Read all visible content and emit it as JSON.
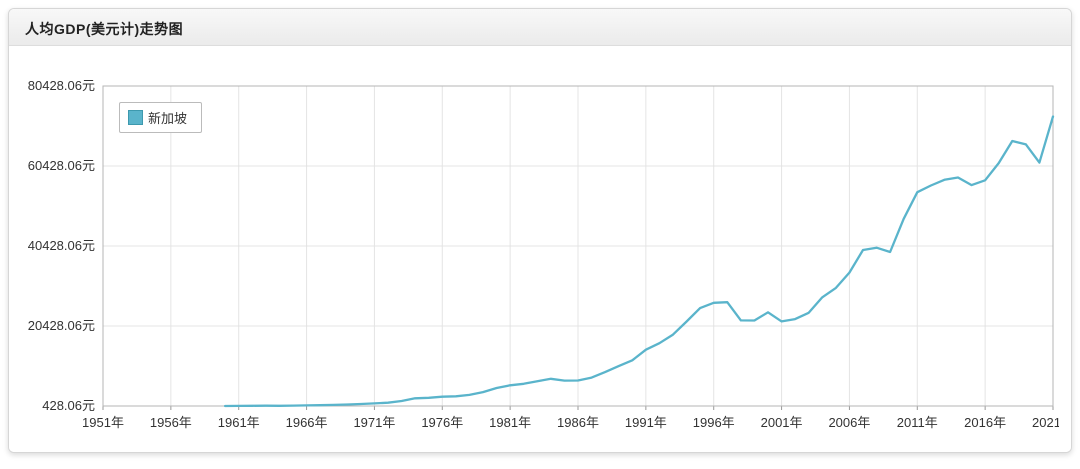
{
  "header": {
    "title": "人均GDP(美元计)走势图"
  },
  "legend": {
    "items": [
      {
        "label": "新加坡",
        "color": "#5ab4cb"
      }
    ]
  },
  "chart_data": {
    "type": "line",
    "title": "人均GDP(美元计)走势图",
    "grid": true,
    "legend_position": "top-left",
    "x_range": [
      1951,
      2021
    ],
    "y_range": [
      428.06,
      80428.06
    ],
    "x_tick_values": [
      1951,
      1956,
      1961,
      1966,
      1971,
      1976,
      1981,
      1986,
      1991,
      1996,
      2001,
      2006,
      2011,
      2016,
      2021
    ],
    "x_tick_labels": [
      "1951年",
      "1956年",
      "1961年",
      "1966年",
      "1971年",
      "1976年",
      "1981年",
      "1986年",
      "1991年",
      "1996年",
      "2001年",
      "2006年",
      "2011年",
      "2016年",
      "2021年"
    ],
    "y_tick_values": [
      428.06,
      20428.06,
      40428.06,
      60428.06,
      80428.06
    ],
    "y_tick_labels": [
      "428.06元",
      "20428.06元",
      "40428.06元",
      "60428.06元",
      "80428.06元"
    ],
    "series": [
      {
        "name": "新加坡",
        "color": "#5ab4cb",
        "x": [
          1960,
          1961,
          1962,
          1963,
          1964,
          1965,
          1966,
          1967,
          1968,
          1969,
          1970,
          1971,
          1972,
          1973,
          1974,
          1975,
          1976,
          1977,
          1978,
          1979,
          1980,
          1981,
          1982,
          1983,
          1984,
          1985,
          1986,
          1987,
          1988,
          1989,
          1990,
          1991,
          1992,
          1993,
          1994,
          1995,
          1996,
          1997,
          1998,
          1999,
          2000,
          2001,
          2002,
          2003,
          2004,
          2005,
          2006,
          2007,
          2008,
          2009,
          2010,
          2011,
          2012,
          2013,
          2014,
          2015,
          2016,
          2017,
          2018,
          2019,
          2020,
          2021
        ],
        "values": [
          428,
          449,
          472,
          511,
          485,
          516,
          566,
          626,
          708,
          812,
          926,
          1071,
          1264,
          1685,
          2341,
          2490,
          2759,
          2845,
          3194,
          3901,
          4928,
          5597,
          5977,
          6633,
          7228,
          6783,
          6800,
          7539,
          8914,
          10395,
          11862,
          14502,
          16136,
          18290,
          21552,
          24914,
          26233,
          26376,
          21829,
          21796,
          23852,
          21577,
          22160,
          23730,
          27609,
          29961,
          33767,
          39433,
          40008,
          38927,
          47237,
          53890,
          55546,
          56967,
          57565,
          55647,
          56848,
          61151,
          66679,
          65831,
          61274,
          72794
        ]
      }
    ]
  }
}
